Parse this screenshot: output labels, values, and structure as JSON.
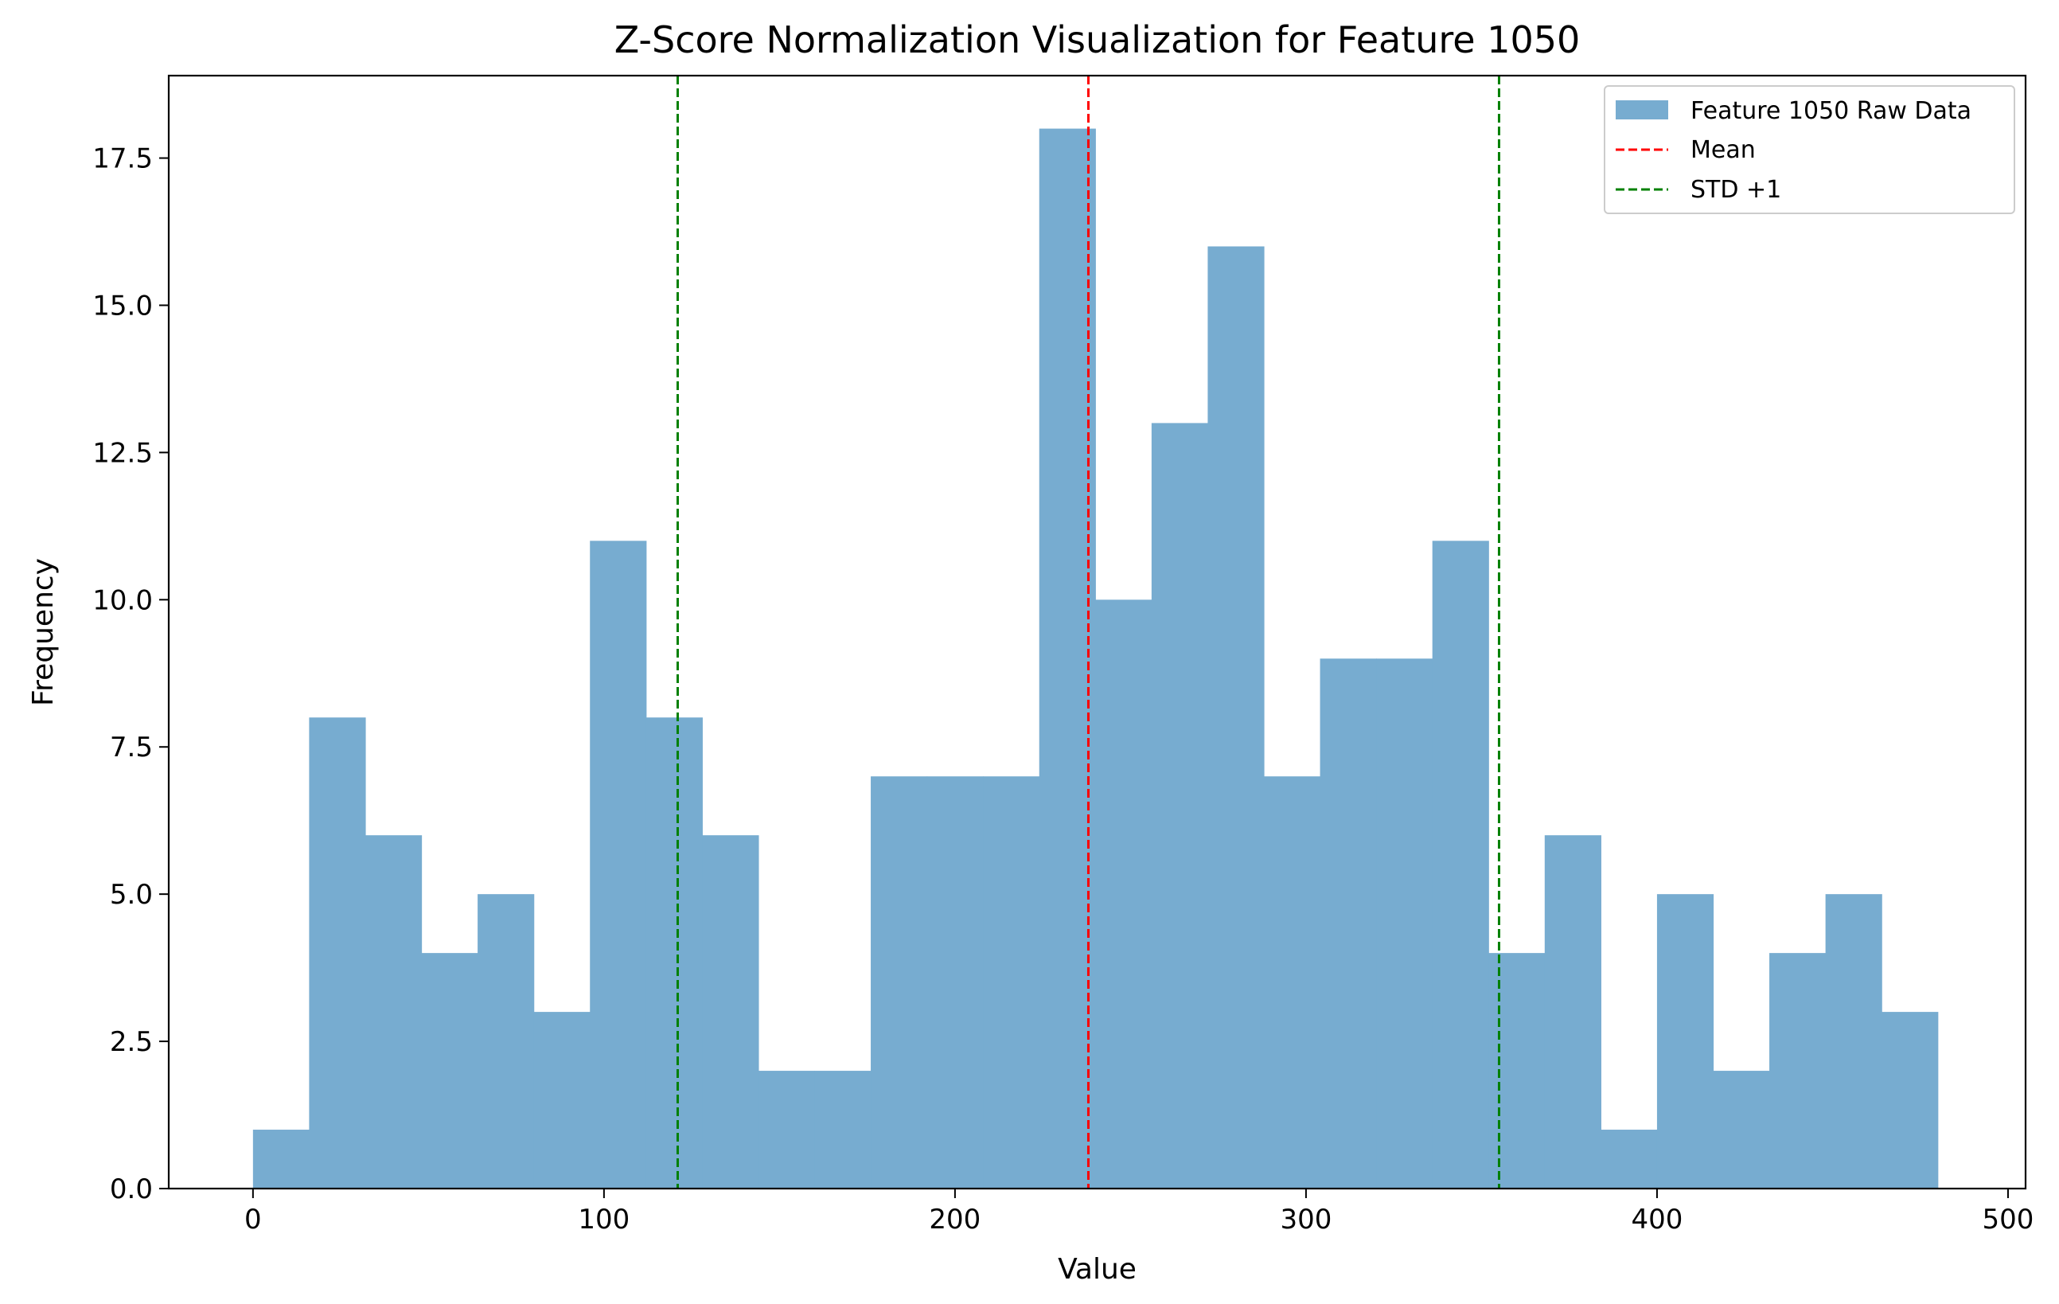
{
  "chart_data": {
    "type": "bar",
    "title": "Z-Score Normalization Visualization for Feature 1050",
    "xlabel": "Value",
    "ylabel": "Frequency",
    "xlim": [
      -24,
      505
    ],
    "ylim": [
      0,
      18.9
    ],
    "grid": false,
    "legend_position": "top-right",
    "x_ticks": [
      "0",
      "100",
      "200",
      "300",
      "400",
      "500"
    ],
    "y_ticks": [
      "0.0",
      "2.5",
      "5.0",
      "7.5",
      "10.0",
      "12.5",
      "15.0",
      "17.5"
    ],
    "series": [
      {
        "name": "Feature 1050 Raw Data",
        "color": "#77acd0",
        "bins": [
          {
            "x0": 0,
            "x1": 16,
            "count": 1
          },
          {
            "x0": 16,
            "x1": 32,
            "count": 8
          },
          {
            "x0": 32,
            "x1": 48,
            "count": 6
          },
          {
            "x0": 48,
            "x1": 64,
            "count": 4
          },
          {
            "x0": 64,
            "x1": 80,
            "count": 5
          },
          {
            "x0": 80,
            "x1": 96,
            "count": 3
          },
          {
            "x0": 96,
            "x1": 112,
            "count": 11
          },
          {
            "x0": 112,
            "x1": 128,
            "count": 8
          },
          {
            "x0": 128,
            "x1": 144,
            "count": 6
          },
          {
            "x0": 144,
            "x1": 160,
            "count": 2
          },
          {
            "x0": 160,
            "x1": 176,
            "count": 2
          },
          {
            "x0": 176,
            "x1": 192,
            "count": 7
          },
          {
            "x0": 192,
            "x1": 208,
            "count": 7
          },
          {
            "x0": 208,
            "x1": 224,
            "count": 7
          },
          {
            "x0": 224,
            "x1": 240,
            "count": 18
          },
          {
            "x0": 240,
            "x1": 256,
            "count": 10
          },
          {
            "x0": 256,
            "x1": 272,
            "count": 13
          },
          {
            "x0": 272,
            "x1": 288,
            "count": 16
          },
          {
            "x0": 288,
            "x1": 304,
            "count": 7
          },
          {
            "x0": 304,
            "x1": 320,
            "count": 9
          },
          {
            "x0": 320,
            "x1": 336,
            "count": 9
          },
          {
            "x0": 336,
            "x1": 352,
            "count": 11
          },
          {
            "x0": 352,
            "x1": 368,
            "count": 4
          },
          {
            "x0": 368,
            "x1": 384,
            "count": 6
          },
          {
            "x0": 384,
            "x1": 400,
            "count": 1
          },
          {
            "x0": 400,
            "x1": 416,
            "count": 5
          },
          {
            "x0": 416,
            "x1": 432,
            "count": 2
          },
          {
            "x0": 432,
            "x1": 448,
            "count": 4
          },
          {
            "x0": 448,
            "x1": 464,
            "count": 5
          },
          {
            "x0": 464,
            "x1": 480,
            "count": 3
          }
        ]
      },
      {
        "name": "Mean",
        "type": "vline",
        "x": 238,
        "color": "#ff0000",
        "style": "dashed"
      },
      {
        "name": "STD +1",
        "type": "vline",
        "x": [
          121,
          355
        ],
        "color": "#008000",
        "style": "dashed"
      }
    ]
  }
}
